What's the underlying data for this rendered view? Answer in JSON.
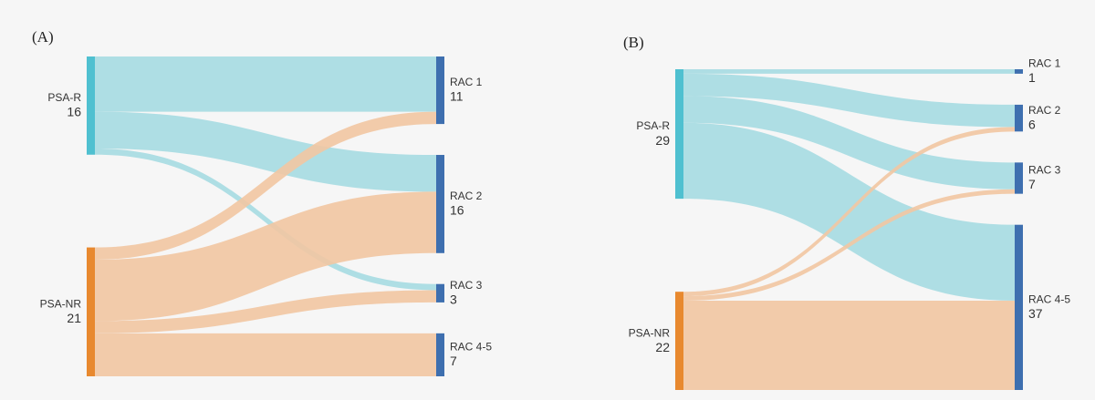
{
  "chart_data": [
    {
      "type": "sankey",
      "title": "(A)",
      "nodes": [
        {
          "name": "PSA-R",
          "value": 16,
          "color": "#4fc0d0",
          "link_color": "#a6dbe2"
        },
        {
          "name": "PSA-NR",
          "value": 21,
          "color": "#e8892f",
          "link_color": "#f2c7a2"
        },
        {
          "name": "RAC 1",
          "value": 11,
          "color": "#3e6faf"
        },
        {
          "name": "RAC 2",
          "value": 16,
          "color": "#3e6faf"
        },
        {
          "name": "RAC 3",
          "value": 3,
          "color": "#3e6faf"
        },
        {
          "name": "RAC 4-5",
          "value": 7,
          "color": "#3e6faf"
        }
      ],
      "links": [
        {
          "source": "PSA-R",
          "target": "RAC 1",
          "value": 9
        },
        {
          "source": "PSA-R",
          "target": "RAC 2",
          "value": 6
        },
        {
          "source": "PSA-R",
          "target": "RAC 3",
          "value": 1
        },
        {
          "source": "PSA-NR",
          "target": "RAC 1",
          "value": 2
        },
        {
          "source": "PSA-NR",
          "target": "RAC 2",
          "value": 10
        },
        {
          "source": "PSA-NR",
          "target": "RAC 3",
          "value": 2
        },
        {
          "source": "PSA-NR",
          "target": "RAC 4-5",
          "value": 7
        }
      ]
    },
    {
      "type": "sankey",
      "title": "(B)",
      "nodes": [
        {
          "name": "PSA-R",
          "value": 29,
          "color": "#4fc0d0",
          "link_color": "#a6dbe2"
        },
        {
          "name": "PSA-NR",
          "value": 22,
          "color": "#e8892f",
          "link_color": "#f2c7a2"
        },
        {
          "name": "RAC 1",
          "value": 1,
          "color": "#3e6faf"
        },
        {
          "name": "RAC 2",
          "value": 6,
          "color": "#3e6faf"
        },
        {
          "name": "RAC 3",
          "value": 7,
          "color": "#3e6faf"
        },
        {
          "name": "RAC 4-5",
          "value": 37,
          "color": "#3e6faf"
        }
      ],
      "links": [
        {
          "source": "PSA-R",
          "target": "RAC 1",
          "value": 1
        },
        {
          "source": "PSA-R",
          "target": "RAC 2",
          "value": 5
        },
        {
          "source": "PSA-R",
          "target": "RAC 3",
          "value": 6
        },
        {
          "source": "PSA-R",
          "target": "RAC 4-5",
          "value": 17
        },
        {
          "source": "PSA-NR",
          "target": "RAC 2",
          "value": 1
        },
        {
          "source": "PSA-NR",
          "target": "RAC 3",
          "value": 1
        },
        {
          "source": "PSA-NR",
          "target": "RAC 4-5",
          "value": 20
        }
      ]
    }
  ]
}
